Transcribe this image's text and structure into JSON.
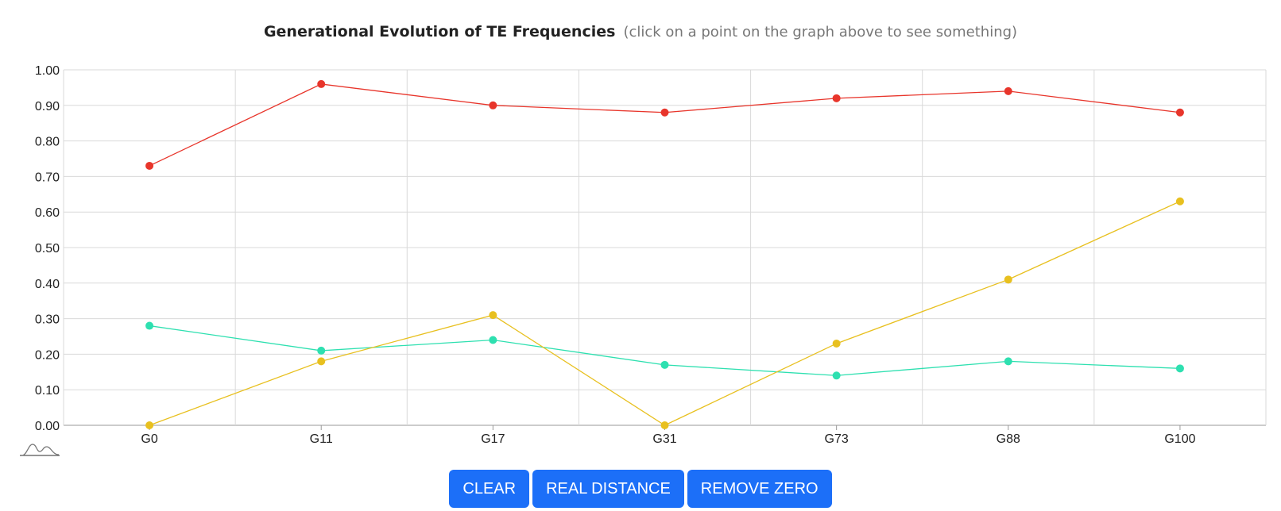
{
  "header": {
    "title": "Generational Evolution of TE Frequencies",
    "subtitle": "(click on a point on the graph above to see something)"
  },
  "buttons": {
    "clear": "CLEAR",
    "real_distance": "REAL DISTANCE",
    "remove_zero": "REMOVE ZERO"
  },
  "icons": {
    "distribution": "distribution-curve-icon"
  },
  "colors": {
    "button": "#1c6ff8",
    "grid": "#d9d9d9",
    "axis": "#999999"
  },
  "chart_data": {
    "type": "line",
    "categories": [
      "G0",
      "G11",
      "G17",
      "G31",
      "G73",
      "G88",
      "G100"
    ],
    "ylim": [
      0,
      1
    ],
    "yticks": [
      "0.00",
      "0.10",
      "0.20",
      "0.30",
      "0.40",
      "0.50",
      "0.60",
      "0.70",
      "0.80",
      "0.90",
      "1.00"
    ],
    "grid": true,
    "series": [
      {
        "color": "#e8352b",
        "values": [
          0.73,
          0.96,
          0.9,
          0.88,
          0.92,
          0.94,
          0.88
        ]
      },
      {
        "color": "#2ee0b0",
        "values": [
          0.28,
          0.21,
          0.24,
          0.17,
          0.14,
          0.18,
          0.16
        ]
      },
      {
        "color": "#e8c01f",
        "values": [
          0.0,
          0.18,
          0.31,
          0.0,
          0.23,
          0.41,
          0.63
        ]
      }
    ]
  }
}
